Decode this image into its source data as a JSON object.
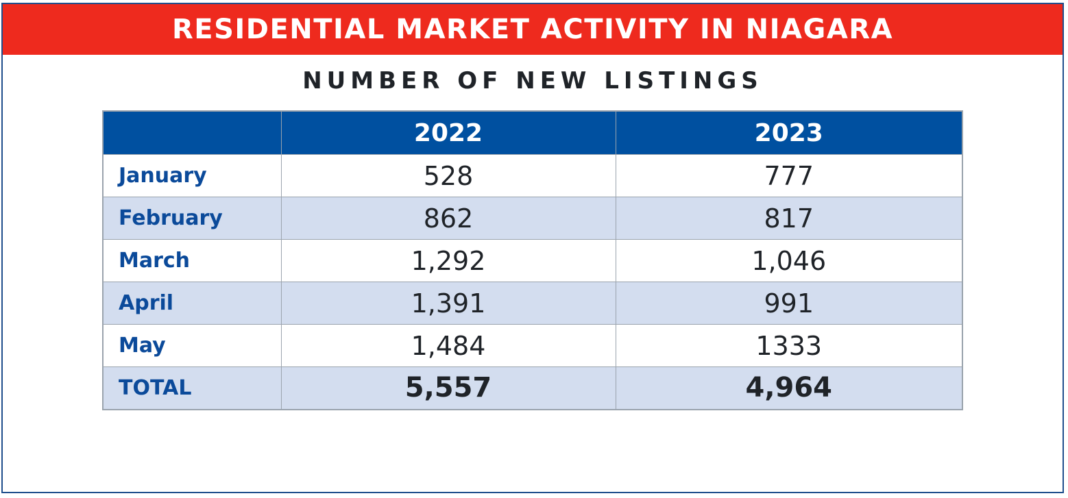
{
  "header": {
    "title": "RESIDENTIAL MARKET ACTIVITY IN NIAGARA",
    "subtitle": "NUMBER OF NEW LISTINGS"
  },
  "colors": {
    "banner": "#ee2a1e",
    "table_header": "#0050a0",
    "row_alt": "#d3ddef",
    "month_text": "#0b4a9a"
  },
  "chart_data": {
    "type": "table",
    "title": "NUMBER OF NEW LISTINGS",
    "columns": [
      "",
      "2022",
      "2023"
    ],
    "rows": [
      {
        "label": "January",
        "values": [
          "528",
          "777"
        ]
      },
      {
        "label": "February",
        "values": [
          "862",
          "817"
        ]
      },
      {
        "label": "March",
        "values": [
          "1,292",
          "1,046"
        ]
      },
      {
        "label": "April",
        "values": [
          "1,391",
          "991"
        ]
      },
      {
        "label": "May",
        "values": [
          "1,484",
          "1333"
        ]
      },
      {
        "label": "TOTAL",
        "values": [
          "5,557",
          "4,964"
        ]
      }
    ]
  }
}
